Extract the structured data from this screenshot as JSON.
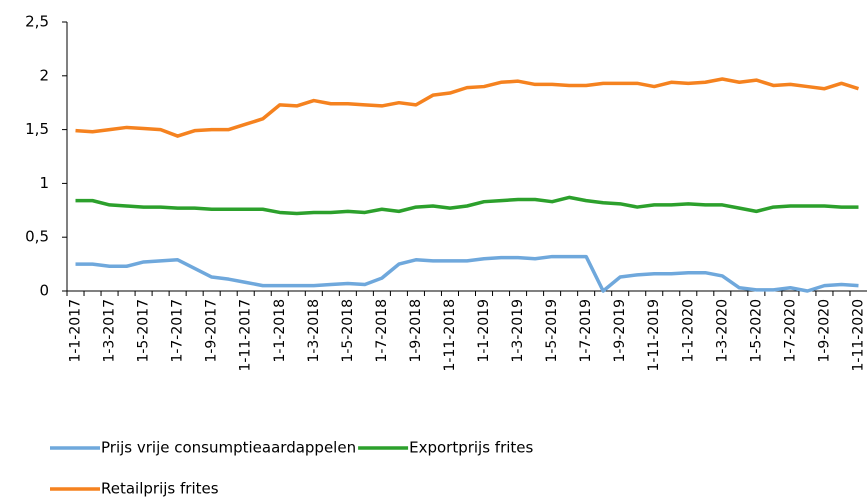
{
  "chart_data": {
    "type": "line",
    "categories": [
      "1-1-2017",
      null,
      "1-3-2017",
      null,
      "1-5-2017",
      null,
      "1-7-2017",
      null,
      "1-9-2017",
      null,
      "1-11-2017",
      null,
      "1-1-2018",
      null,
      "1-3-2018",
      null,
      "1-5-2018",
      null,
      "1-7-2018",
      null,
      "1-9-2018",
      null,
      "1-11-2018",
      null,
      "1-1-2019",
      null,
      "1-3-2019",
      null,
      "1-5-2019",
      null,
      "1-7-2019",
      null,
      "1-9-2019",
      null,
      "1-11-2019",
      null,
      "1-1-2020",
      null,
      "1-3-2020",
      null,
      "1-5-2020",
      null,
      "1-7-2020",
      null,
      "1-9-2020",
      null,
      "1-11-2020"
    ],
    "series": [
      {
        "name": "Prijs vrije consumptieaardappelen",
        "color": "#6fa8dc",
        "values": [
          0.25,
          0.25,
          0.23,
          0.23,
          0.27,
          0.28,
          0.29,
          0.21,
          0.13,
          0.11,
          0.08,
          0.05,
          0.05,
          0.05,
          0.05,
          0.06,
          0.07,
          0.06,
          0.12,
          0.25,
          0.29,
          0.28,
          0.28,
          0.28,
          0.3,
          0.31,
          0.31,
          0.3,
          0.32,
          0.32,
          0.32,
          0,
          0.13,
          0.15,
          0.16,
          0.16,
          0.17,
          0.17,
          0.14,
          0.03,
          0.01,
          0.01,
          0.03,
          0,
          0.05,
          0.06,
          0.05
        ]
      },
      {
        "name": "Exportprijs frites",
        "color": "#2ca02c",
        "values": [
          0.84,
          0.84,
          0.8,
          0.79,
          0.78,
          0.78,
          0.77,
          0.77,
          0.76,
          0.76,
          0.76,
          0.76,
          0.73,
          0.72,
          0.73,
          0.73,
          0.74,
          0.73,
          0.76,
          0.74,
          0.78,
          0.79,
          0.77,
          0.79,
          0.83,
          0.84,
          0.85,
          0.85,
          0.83,
          0.87,
          0.84,
          0.82,
          0.81,
          0.78,
          0.8,
          0.8,
          0.81,
          0.8,
          0.8,
          0.77,
          0.74,
          0.78,
          0.79,
          0.79,
          0.79,
          0.78,
          0.78
        ]
      },
      {
        "name": "Retailprijs frites",
        "color": "#f5821f",
        "values": [
          1.49,
          1.48,
          1.5,
          1.52,
          1.51,
          1.5,
          1.44,
          1.49,
          1.5,
          1.5,
          1.55,
          1.6,
          1.73,
          1.72,
          1.77,
          1.74,
          1.74,
          1.73,
          1.72,
          1.75,
          1.73,
          1.82,
          1.84,
          1.89,
          1.9,
          1.94,
          1.95,
          1.92,
          1.92,
          1.91,
          1.91,
          1.93,
          1.93,
          1.93,
          1.9,
          1.94,
          1.93,
          1.94,
          1.97,
          1.94,
          1.96,
          1.91,
          1.92,
          1.9,
          1.88,
          1.93,
          1.88
        ]
      }
    ],
    "ylim": [
      0,
      2.5
    ],
    "yticks": [
      0,
      {
        "value": 0.5,
        "label": "0,5"
      },
      1,
      {
        "value": 1.5,
        "label": "1,5"
      },
      2,
      {
        "value": 2.5,
        "label": "2,5"
      }
    ],
    "grid": false
  }
}
